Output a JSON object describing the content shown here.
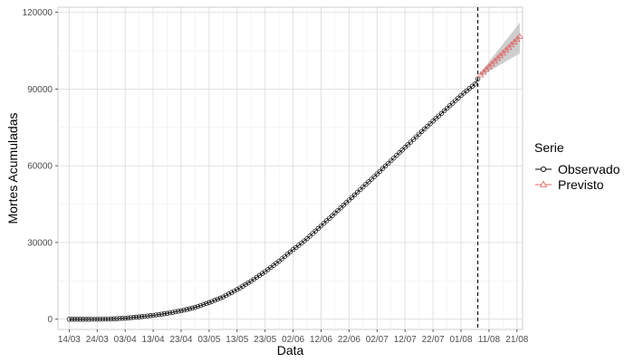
{
  "chart_data": {
    "type": "line",
    "xlabel": "Data",
    "ylabel": "Mortes Acumuladas",
    "x_start": "14/03",
    "x_ticks": [
      "14/03",
      "24/03",
      "03/04",
      "13/04",
      "23/04",
      "03/05",
      "13/05",
      "23/05",
      "02/06",
      "12/06",
      "22/06",
      "02/07",
      "12/07",
      "22/07",
      "01/08",
      "11/08",
      "21/08"
    ],
    "xlim": [
      "10/03",
      "23/08"
    ],
    "y_ticks": [
      0,
      30000,
      60000,
      90000,
      120000
    ],
    "ylim": [
      -4000,
      122000
    ],
    "grid": true,
    "vline_at": "07/08",
    "legend": {
      "title": "Serie",
      "position": "right",
      "entries": [
        {
          "label": "Observado",
          "marker": "circle",
          "color": "#000000"
        },
        {
          "label": "Previsto",
          "marker": "triangle",
          "color": "#e06a6a"
        }
      ]
    },
    "series": [
      {
        "name": "Observado",
        "marker": "circle",
        "color": "#000000",
        "keyframes": [
          [
            0,
            0
          ],
          [
            5,
            5
          ],
          [
            10,
            30
          ],
          [
            15,
            100
          ],
          [
            20,
            400
          ],
          [
            25,
            900
          ],
          [
            30,
            1500
          ],
          [
            35,
            2300
          ],
          [
            40,
            3300
          ],
          [
            45,
            4600
          ],
          [
            50,
            6500
          ],
          [
            55,
            8700
          ],
          [
            60,
            11600
          ],
          [
            65,
            14900
          ],
          [
            70,
            18600
          ],
          [
            75,
            22700
          ],
          [
            80,
            27200
          ],
          [
            85,
            31500
          ],
          [
            90,
            36500
          ],
          [
            95,
            41500
          ],
          [
            100,
            46600
          ],
          [
            105,
            51700
          ],
          [
            110,
            56800
          ],
          [
            115,
            62000
          ],
          [
            120,
            67200
          ],
          [
            125,
            72400
          ],
          [
            130,
            77500
          ],
          [
            135,
            82500
          ],
          [
            140,
            87500
          ],
          [
            145,
            92000
          ],
          [
            146,
            94000
          ]
        ]
      },
      {
        "name": "Previsto",
        "marker": "triangle",
        "color": "#e06a6a",
        "keyframes": [
          [
            147,
            95500
          ],
          [
            161,
            110500
          ]
        ],
        "band_lower": [
          [
            147,
            95000
          ],
          [
            161,
            104000
          ]
        ],
        "band_upper": [
          [
            147,
            96500
          ],
          [
            161,
            116000
          ]
        ]
      }
    ]
  }
}
